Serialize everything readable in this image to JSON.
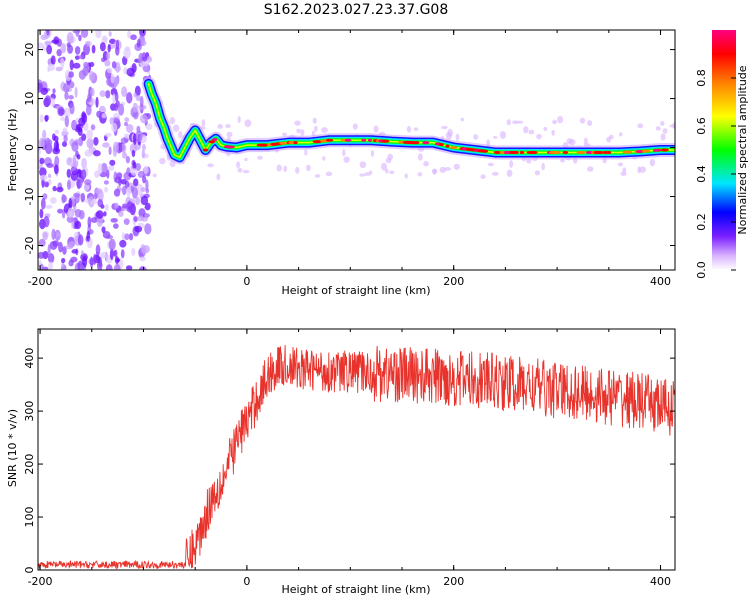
{
  "title": "S162.2023.027.23.37.G08",
  "chart_data": [
    {
      "type": "heatmap",
      "xlabel": "Height of straight line (km)",
      "ylabel": "Frequency (Hz)",
      "xlim": [
        -202,
        414
      ],
      "ylim": [
        -25,
        24
      ],
      "xticks": [
        "-200",
        "0",
        "200",
        "400"
      ],
      "yticks": [
        "20",
        "10",
        "0",
        "-10",
        "-20"
      ],
      "colorbar": {
        "label": "Normalized spectral amplitude",
        "range": [
          0,
          1
        ],
        "ticks": [
          "0.0",
          "0.2",
          "0.4",
          "0.6",
          "0.8"
        ],
        "colors": [
          "#ffffff",
          "#d9b3ff",
          "#7a1fff",
          "#0000ff",
          "#00e5ff",
          "#00ff00",
          "#ffff00",
          "#ff8000",
          "#ff0000",
          "#ff0080"
        ]
      },
      "ridge": {
        "x": [
          -95,
          -92,
          -88,
          -84,
          -80,
          -77,
          -73,
          -70,
          -65,
          -60,
          -55,
          -50,
          -45,
          -40,
          -35,
          -30,
          -25,
          -20,
          -10,
          0,
          20,
          40,
          60,
          80,
          100,
          120,
          140,
          160,
          180,
          200,
          220,
          240,
          260,
          280,
          300,
          320,
          340,
          360,
          380,
          400,
          414
        ],
        "y": [
          13,
          11,
          9,
          6,
          4,
          2,
          0,
          -1.5,
          -2,
          0,
          2,
          3.5,
          1.5,
          -0.5,
          1,
          1.8,
          0.5,
          0.2,
          0,
          0.5,
          0.5,
          1,
          1,
          1.5,
          1.5,
          1.5,
          1.2,
          1,
          1,
          0,
          -0.5,
          -1,
          -1,
          -1,
          -1,
          -1,
          -1,
          -1,
          -0.8,
          -0.5,
          -0.5
        ]
      }
    },
    {
      "type": "line",
      "xlabel": "Height of straight line (km)",
      "ylabel": "SNR (10 * v/v)",
      "xlim": [
        -202,
        414
      ],
      "ylim": [
        0,
        455
      ],
      "xticks": [
        "-200",
        "0",
        "200",
        "400"
      ],
      "yticks": [
        "400",
        "300",
        "200",
        "100",
        "0"
      ],
      "series": [
        {
          "color": "#e8332c",
          "x": [
            -202,
            -180,
            -160,
            -140,
            -120,
            -100,
            -80,
            -60,
            -55,
            -50,
            -45,
            -40,
            -35,
            -30,
            -25,
            -20,
            -15,
            -10,
            -5,
            0,
            5,
            10,
            15,
            20,
            25,
            30,
            40,
            50,
            60,
            80,
            100,
            120,
            140,
            160,
            180,
            200,
            220,
            240,
            260,
            280,
            300,
            320,
            340,
            360,
            380,
            400,
            414
          ],
          "y": [
            10,
            10,
            10,
            10,
            10,
            10,
            10,
            10,
            25,
            45,
            70,
            100,
            130,
            150,
            165,
            185,
            215,
            240,
            265,
            280,
            300,
            325,
            345,
            365,
            378,
            385,
            385,
            380,
            378,
            375,
            375,
            373,
            370,
            368,
            365,
            362,
            360,
            355,
            350,
            345,
            340,
            335,
            330,
            325,
            318,
            310,
            305
          ]
        }
      ]
    }
  ]
}
